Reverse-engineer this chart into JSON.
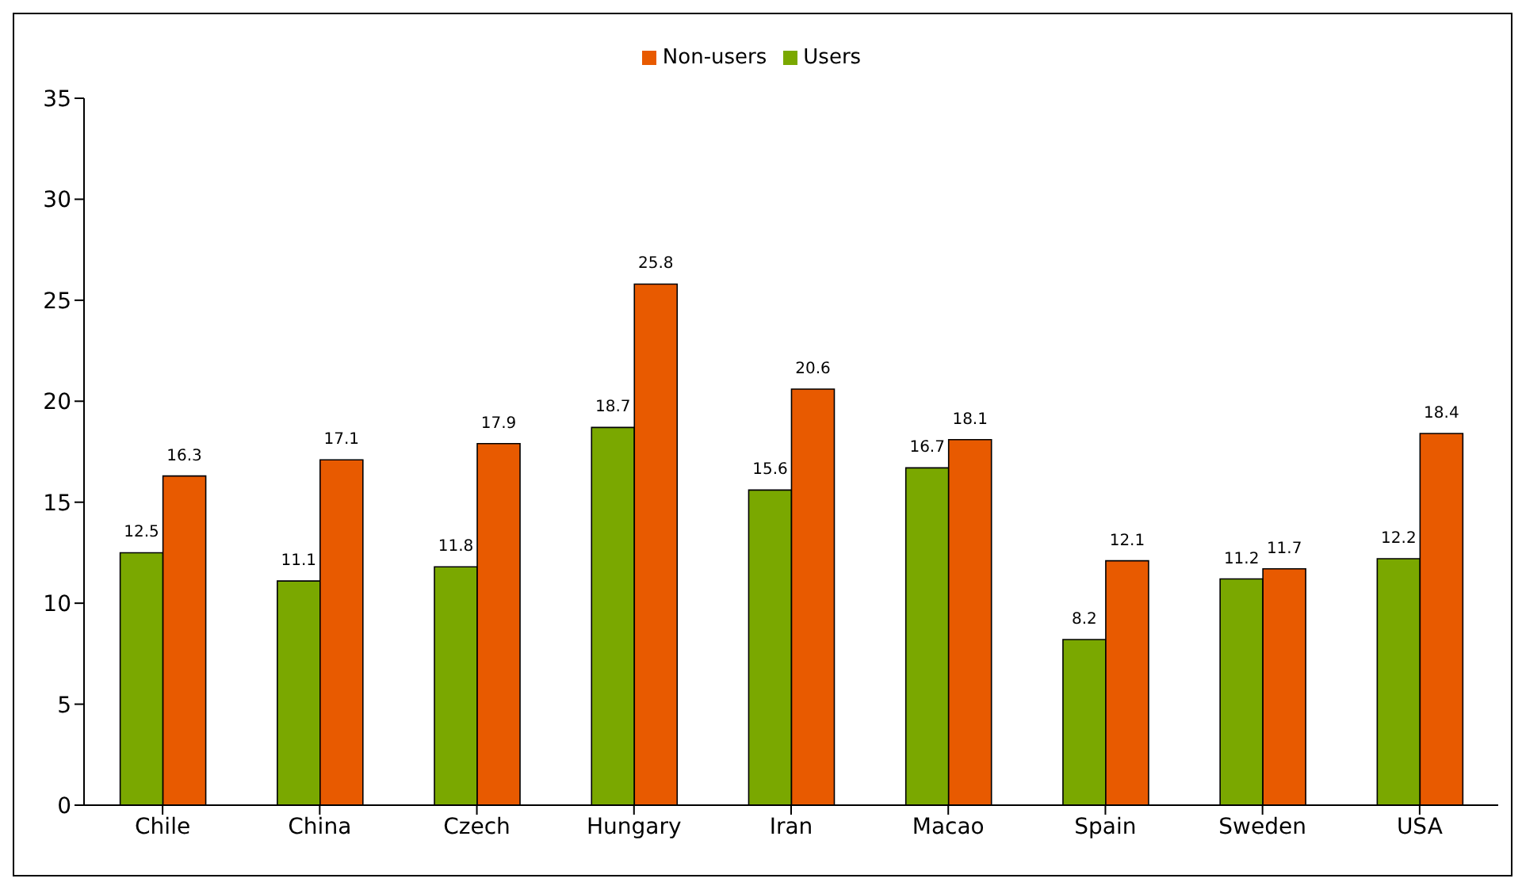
{
  "chart_data": {
    "type": "bar",
    "categories": [
      "Chile",
      "China",
      "Czech",
      "Hungary",
      "Iran",
      "Macao",
      "Spain",
      "Sweden",
      "USA"
    ],
    "series": [
      {
        "name": "Users",
        "color": "#7aa800",
        "values": [
          12.5,
          11.1,
          11.8,
          18.7,
          15.6,
          16.7,
          8.2,
          11.2,
          12.2
        ]
      },
      {
        "name": "Non-users",
        "color": "#e85a00",
        "values": [
          16.3,
          17.1,
          17.9,
          25.8,
          20.6,
          18.1,
          12.1,
          11.7,
          18.4
        ]
      }
    ],
    "ylim": [
      0,
      35
    ],
    "yticks": [
      0,
      5,
      10,
      15,
      20,
      25,
      30,
      35
    ],
    "grid": false,
    "legend": "top",
    "data_labels": true
  }
}
